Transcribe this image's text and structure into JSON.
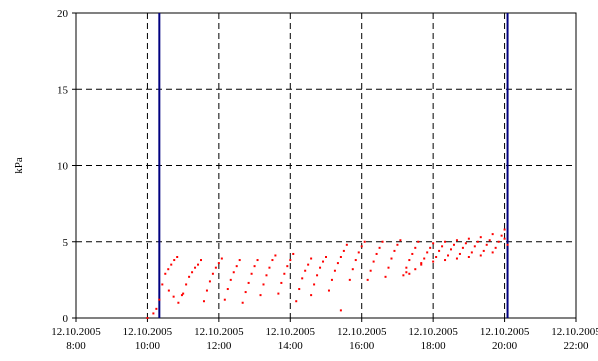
{
  "chart_data": {
    "type": "scatter",
    "title": "",
    "xlabel": "",
    "ylabel": "kPa",
    "ylim": [
      0,
      20
    ],
    "xlim": [
      "12.10.2005 8:00",
      "12.10.2005 22:00"
    ],
    "grid": true,
    "legend": "none",
    "y_ticks": [
      "0",
      "5",
      "10",
      "15",
      "20"
    ],
    "x_ticks": [
      {
        "date": "12.10.2005",
        "time": "8:00"
      },
      {
        "date": "12.10.2005",
        "time": "10:00"
      },
      {
        "date": "12.10.2005",
        "time": "12:00"
      },
      {
        "date": "12.10.2005",
        "time": "14:00"
      },
      {
        "date": "12.10.2005",
        "time": "16:00"
      },
      {
        "date": "12.10.2005",
        "time": "18:00"
      },
      {
        "date": "12.10.2005",
        "time": "20:00"
      },
      {
        "date": "12.10.2005",
        "time": "22:00"
      }
    ],
    "marker_lines": [
      "12.10.2005 10:20",
      "12.10.2005 20:05"
    ],
    "colors": {
      "points": "#ff0000",
      "marker_lines": "#000080",
      "grid": "#000000"
    },
    "series": [
      {
        "points": [
          [
            "10:00",
            0.0
          ],
          [
            "10:10",
            0.3
          ],
          [
            "10:15",
            0.6
          ],
          [
            "10:20",
            1.2
          ],
          [
            "10:25",
            2.2
          ],
          [
            "10:30",
            2.9
          ],
          [
            "10:35",
            3.2
          ],
          [
            "10:40",
            3.5
          ],
          [
            "10:45",
            3.8
          ],
          [
            "10:50",
            4.0
          ],
          [
            "10:36",
            1.8
          ],
          [
            "10:44",
            1.4
          ],
          [
            "10:52",
            1.0
          ],
          [
            "10:58",
            1.5
          ],
          [
            "11:00",
            1.6
          ],
          [
            "11:05",
            2.2
          ],
          [
            "11:10",
            2.7
          ],
          [
            "11:15",
            3.0
          ],
          [
            "11:20",
            3.3
          ],
          [
            "11:25",
            3.5
          ],
          [
            "11:30",
            3.8
          ],
          [
            "11:35",
            1.1
          ],
          [
            "11:40",
            1.8
          ],
          [
            "11:45",
            2.4
          ],
          [
            "11:50",
            2.9
          ],
          [
            "11:55",
            3.3
          ],
          [
            "12:00",
            3.6
          ],
          [
            "12:05",
            3.9
          ],
          [
            "12:10",
            1.2
          ],
          [
            "12:15",
            1.9
          ],
          [
            "12:20",
            2.5
          ],
          [
            "12:25",
            3.0
          ],
          [
            "12:30",
            3.4
          ],
          [
            "12:35",
            3.8
          ],
          [
            "12:40",
            1.0
          ],
          [
            "12:45",
            1.7
          ],
          [
            "12:50",
            2.3
          ],
          [
            "12:55",
            2.9
          ],
          [
            "13:00",
            3.4
          ],
          [
            "13:05",
            3.8
          ],
          [
            "13:10",
            1.5
          ],
          [
            "13:15",
            2.2
          ],
          [
            "13:20",
            2.8
          ],
          [
            "13:25",
            3.3
          ],
          [
            "13:30",
            3.8
          ],
          [
            "13:35",
            4.1
          ],
          [
            "13:40",
            1.6
          ],
          [
            "13:45",
            2.3
          ],
          [
            "13:50",
            2.9
          ],
          [
            "13:55",
            3.4
          ],
          [
            "14:00",
            3.8
          ],
          [
            "14:05",
            4.2
          ],
          [
            "14:10",
            1.1
          ],
          [
            "14:15",
            1.9
          ],
          [
            "14:20",
            2.6
          ],
          [
            "14:25",
            3.1
          ],
          [
            "14:30",
            3.5
          ],
          [
            "14:35",
            3.9
          ],
          [
            "14:35",
            1.5
          ],
          [
            "14:40",
            2.2
          ],
          [
            "14:45",
            2.8
          ],
          [
            "14:50",
            3.3
          ],
          [
            "14:55",
            3.7
          ],
          [
            "15:00",
            4.0
          ],
          [
            "15:05",
            1.8
          ],
          [
            "15:10",
            2.5
          ],
          [
            "15:15",
            3.1
          ],
          [
            "15:20",
            3.6
          ],
          [
            "15:25",
            4.0
          ],
          [
            "15:30",
            4.4
          ],
          [
            "15:35",
            4.8
          ],
          [
            "15:25",
            0.5
          ],
          [
            "15:40",
            2.5
          ],
          [
            "15:45",
            3.2
          ],
          [
            "15:50",
            3.8
          ],
          [
            "15:55",
            4.3
          ],
          [
            "16:00",
            4.7
          ],
          [
            "16:05",
            5.0
          ],
          [
            "16:10",
            2.5
          ],
          [
            "16:15",
            3.1
          ],
          [
            "16:20",
            3.7
          ],
          [
            "16:25",
            4.2
          ],
          [
            "16:30",
            4.6
          ],
          [
            "16:35",
            5.0
          ],
          [
            "16:40",
            2.7
          ],
          [
            "16:45",
            3.3
          ],
          [
            "16:50",
            3.9
          ],
          [
            "16:55",
            4.4
          ],
          [
            "17:00",
            4.8
          ],
          [
            "17:05",
            5.1
          ],
          [
            "17:10",
            2.8
          ],
          [
            "17:15",
            3.3
          ],
          [
            "17:20",
            3.8
          ],
          [
            "17:25",
            4.2
          ],
          [
            "17:30",
            4.6
          ],
          [
            "17:35",
            5.0
          ],
          [
            "17:15",
            3.0
          ],
          [
            "17:20",
            2.9
          ],
          [
            "17:30",
            3.2
          ],
          [
            "17:40",
            3.5
          ],
          [
            "17:40",
            3.6
          ],
          [
            "17:45",
            3.9
          ],
          [
            "17:50",
            4.3
          ],
          [
            "17:55",
            4.6
          ],
          [
            "18:00",
            4.9
          ],
          [
            "18:00",
            3.7
          ],
          [
            "18:05",
            4.0
          ],
          [
            "18:10",
            4.4
          ],
          [
            "18:15",
            4.7
          ],
          [
            "18:20",
            5.0
          ],
          [
            "18:20",
            3.8
          ],
          [
            "18:25",
            4.1
          ],
          [
            "18:30",
            4.5
          ],
          [
            "18:35",
            4.8
          ],
          [
            "18:40",
            5.1
          ],
          [
            "18:40",
            3.9
          ],
          [
            "18:45",
            4.2
          ],
          [
            "18:50",
            4.6
          ],
          [
            "18:55",
            4.9
          ],
          [
            "19:00",
            5.2
          ],
          [
            "19:00",
            4.0
          ],
          [
            "19:05",
            4.3
          ],
          [
            "19:10",
            4.7
          ],
          [
            "19:15",
            5.0
          ],
          [
            "19:20",
            5.3
          ],
          [
            "19:20",
            4.1
          ],
          [
            "19:25",
            4.4
          ],
          [
            "19:30",
            4.8
          ],
          [
            "19:35",
            5.1
          ],
          [
            "19:40",
            5.5
          ],
          [
            "19:40",
            4.3
          ],
          [
            "19:45",
            4.6
          ],
          [
            "19:50",
            5.0
          ],
          [
            "19:55",
            5.4
          ],
          [
            "20:00",
            5.8
          ],
          [
            "20:00",
            5.2
          ],
          [
            "20:05",
            4.8
          ]
        ]
      }
    ]
  }
}
